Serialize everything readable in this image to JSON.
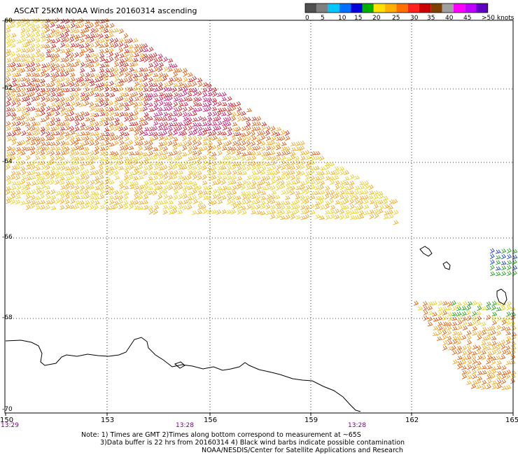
{
  "title": "ASCAT 25KM NOAA Winds 20160314 ascending",
  "legend": {
    "colors": [
      "#505050",
      "#808080",
      "#00c8ff",
      "#0070ff",
      "#0000d8",
      "#00b000",
      "#ffe000",
      "#ffb000",
      "#ff7000",
      "#ff2020",
      "#c80000",
      "#804000",
      "#a0a0a0",
      "#ff00ff",
      "#c000ff",
      "#6000c0"
    ],
    "labels": [
      "0",
      "5",
      "10",
      "15",
      "20",
      "25",
      "30",
      "35",
      "40",
      "45",
      ">50 knots"
    ]
  },
  "lat_labels": [
    "-60",
    "-62",
    "-64",
    "-66",
    "-68",
    "-70"
  ],
  "lon_labels": [
    "150",
    "153",
    "156",
    "159",
    "162",
    "165"
  ],
  "time_labels": [
    "13:29",
    "13:28",
    "13:28"
  ],
  "notes": {
    "line1": "Note: 1) Times are GMT  2)Times along bottom correspond to measurement at ~65S",
    "line2": "3)Data buffer is 22 hrs from 20160314  4) Black wind barbs indicate possible contamination",
    "line3": "NOAA/NESDIS/Center for Satellite Applications and Research"
  },
  "wind_colors": {
    "yellow": "#e8d020",
    "gold": "#f0a820",
    "orange": "#e06010",
    "red": "#d02020",
    "magenta": "#c81870",
    "green": "#20a020",
    "blue": "#2040d0"
  }
}
